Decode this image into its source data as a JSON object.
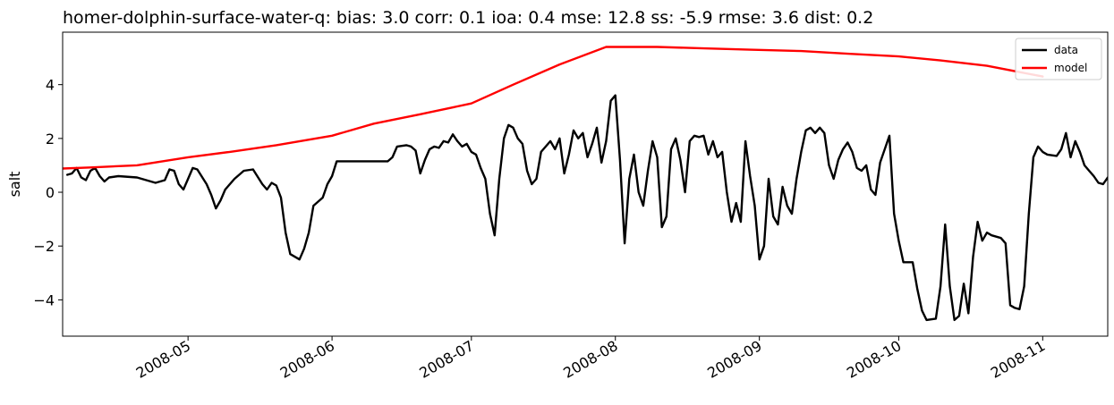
{
  "chart_data": {
    "type": "line",
    "title": "homer-dolphin-surface-water-q: bias: 3.0  corr: 0.1  ioa: 0.4  mse: 12.8  ss: -5.9  rmse: 3.6  dist: 0.2",
    "xlabel": "",
    "ylabel": "salt",
    "xlim": [
      "2008-04-04",
      "2008-11-15"
    ],
    "ylim": [
      -5.35,
      5.95
    ],
    "x_ticks": [
      "2008-05",
      "2008-06",
      "2008-07",
      "2008-08",
      "2008-09",
      "2008-10",
      "2008-11"
    ],
    "y_ticks": [
      -4,
      -2,
      0,
      2,
      4
    ],
    "y_tick_labels": [
      "−4",
      "−2",
      "0",
      "2",
      "4"
    ],
    "grid": false,
    "legend_position": "top-right",
    "series": [
      {
        "name": "data",
        "color": "#000000",
        "points": [
          [
            "2008-04-05",
            0.65
          ],
          [
            "2008-04-06",
            0.7
          ],
          [
            "2008-04-07",
            0.9
          ],
          [
            "2008-04-08",
            0.55
          ],
          [
            "2008-04-09",
            0.45
          ],
          [
            "2008-04-10",
            0.8
          ],
          [
            "2008-04-11",
            0.9
          ],
          [
            "2008-04-12",
            0.6
          ],
          [
            "2008-04-13",
            0.4
          ],
          [
            "2008-04-14",
            0.55
          ],
          [
            "2008-04-16",
            0.6
          ],
          [
            "2008-04-20",
            0.55
          ],
          [
            "2008-04-24",
            0.35
          ],
          [
            "2008-04-26",
            0.45
          ],
          [
            "2008-04-27",
            0.85
          ],
          [
            "2008-04-28",
            0.8
          ],
          [
            "2008-04-29",
            0.3
          ],
          [
            "2008-04-30",
            0.1
          ],
          [
            "2008-05-01",
            0.5
          ],
          [
            "2008-05-02",
            0.9
          ],
          [
            "2008-05-03",
            0.85
          ],
          [
            "2008-05-05",
            0.3
          ],
          [
            "2008-05-06",
            -0.1
          ],
          [
            "2008-05-07",
            -0.6
          ],
          [
            "2008-05-08",
            -0.3
          ],
          [
            "2008-05-09",
            0.1
          ],
          [
            "2008-05-11",
            0.5
          ],
          [
            "2008-05-13",
            0.8
          ],
          [
            "2008-05-15",
            0.85
          ],
          [
            "2008-05-17",
            0.3
          ],
          [
            "2008-05-18",
            0.1
          ],
          [
            "2008-05-19",
            0.35
          ],
          [
            "2008-05-20",
            0.25
          ],
          [
            "2008-05-21",
            -0.2
          ],
          [
            "2008-05-22",
            -1.5
          ],
          [
            "2008-05-23",
            -2.3
          ],
          [
            "2008-05-25",
            -2.5
          ],
          [
            "2008-05-26",
            -2.1
          ],
          [
            "2008-05-27",
            -1.5
          ],
          [
            "2008-05-28",
            -0.5
          ],
          [
            "2008-05-30",
            -0.2
          ],
          [
            "2008-05-31",
            0.3
          ],
          [
            "2008-06-01",
            0.6
          ],
          [
            "2008-06-02",
            1.15
          ],
          [
            "2008-06-13",
            1.15
          ],
          [
            "2008-06-14",
            1.3
          ],
          [
            "2008-06-15",
            1.7
          ],
          [
            "2008-06-17",
            1.75
          ],
          [
            "2008-06-18",
            1.7
          ],
          [
            "2008-06-19",
            1.55
          ],
          [
            "2008-06-20",
            0.7
          ],
          [
            "2008-06-21",
            1.2
          ],
          [
            "2008-06-22",
            1.6
          ],
          [
            "2008-06-23",
            1.7
          ],
          [
            "2008-06-24",
            1.65
          ],
          [
            "2008-06-25",
            1.9
          ],
          [
            "2008-06-26",
            1.85
          ],
          [
            "2008-06-27",
            2.15
          ],
          [
            "2008-06-28",
            1.9
          ],
          [
            "2008-06-29",
            1.7
          ],
          [
            "2008-06-30",
            1.8
          ],
          [
            "2008-07-01",
            1.5
          ],
          [
            "2008-07-02",
            1.4
          ],
          [
            "2008-07-03",
            0.9
          ],
          [
            "2008-07-04",
            0.5
          ],
          [
            "2008-07-05",
            -0.8
          ],
          [
            "2008-07-06",
            -1.6
          ],
          [
            "2008-07-07",
            0.5
          ],
          [
            "2008-07-08",
            2.0
          ],
          [
            "2008-07-09",
            2.5
          ],
          [
            "2008-07-10",
            2.4
          ],
          [
            "2008-07-11",
            2.0
          ],
          [
            "2008-07-12",
            1.8
          ],
          [
            "2008-07-13",
            0.8
          ],
          [
            "2008-07-14",
            0.3
          ],
          [
            "2008-07-15",
            0.5
          ],
          [
            "2008-07-16",
            1.5
          ],
          [
            "2008-07-17",
            1.7
          ],
          [
            "2008-07-18",
            1.9
          ],
          [
            "2008-07-19",
            1.6
          ],
          [
            "2008-07-20",
            2.0
          ],
          [
            "2008-07-21",
            0.7
          ],
          [
            "2008-07-22",
            1.4
          ],
          [
            "2008-07-23",
            2.3
          ],
          [
            "2008-07-24",
            2.0
          ],
          [
            "2008-07-25",
            2.2
          ],
          [
            "2008-07-26",
            1.3
          ],
          [
            "2008-07-27",
            1.8
          ],
          [
            "2008-07-28",
            2.4
          ],
          [
            "2008-07-29",
            1.1
          ],
          [
            "2008-07-30",
            1.9
          ],
          [
            "2008-07-31",
            3.4
          ],
          [
            "2008-08-01",
            3.6
          ],
          [
            "2008-08-02",
            1.2
          ],
          [
            "2008-08-03",
            -1.9
          ],
          [
            "2008-08-04",
            0.5
          ],
          [
            "2008-08-05",
            1.4
          ],
          [
            "2008-08-06",
            0.0
          ],
          [
            "2008-08-07",
            -0.5
          ],
          [
            "2008-08-08",
            0.8
          ],
          [
            "2008-08-09",
            1.9
          ],
          [
            "2008-08-10",
            1.3
          ],
          [
            "2008-08-11",
            -1.3
          ],
          [
            "2008-08-12",
            -0.9
          ],
          [
            "2008-08-13",
            1.6
          ],
          [
            "2008-08-14",
            2.0
          ],
          [
            "2008-08-15",
            1.2
          ],
          [
            "2008-08-16",
            0.0
          ],
          [
            "2008-08-17",
            1.9
          ],
          [
            "2008-08-18",
            2.1
          ],
          [
            "2008-08-19",
            2.05
          ],
          [
            "2008-08-20",
            2.1
          ],
          [
            "2008-08-21",
            1.4
          ],
          [
            "2008-08-22",
            1.9
          ],
          [
            "2008-08-23",
            1.3
          ],
          [
            "2008-08-24",
            1.5
          ],
          [
            "2008-08-25",
            0.0
          ],
          [
            "2008-08-26",
            -1.1
          ],
          [
            "2008-08-27",
            -0.4
          ],
          [
            "2008-08-28",
            -1.1
          ],
          [
            "2008-08-29",
            1.9
          ],
          [
            "2008-08-30",
            0.6
          ],
          [
            "2008-08-31",
            -0.5
          ],
          [
            "2008-09-01",
            -2.5
          ],
          [
            "2008-09-02",
            -2.0
          ],
          [
            "2008-09-03",
            0.5
          ],
          [
            "2008-09-04",
            -0.9
          ],
          [
            "2008-09-05",
            -1.2
          ],
          [
            "2008-09-06",
            0.2
          ],
          [
            "2008-09-07",
            -0.5
          ],
          [
            "2008-09-08",
            -0.8
          ],
          [
            "2008-09-09",
            0.5
          ],
          [
            "2008-09-10",
            1.5
          ],
          [
            "2008-09-11",
            2.3
          ],
          [
            "2008-09-12",
            2.4
          ],
          [
            "2008-09-13",
            2.2
          ],
          [
            "2008-09-14",
            2.4
          ],
          [
            "2008-09-15",
            2.2
          ],
          [
            "2008-09-16",
            1.0
          ],
          [
            "2008-09-17",
            0.5
          ],
          [
            "2008-09-18",
            1.2
          ],
          [
            "2008-09-19",
            1.6
          ],
          [
            "2008-09-20",
            1.85
          ],
          [
            "2008-09-21",
            1.5
          ],
          [
            "2008-09-22",
            0.9
          ],
          [
            "2008-09-23",
            0.8
          ],
          [
            "2008-09-24",
            1.0
          ],
          [
            "2008-09-25",
            0.1
          ],
          [
            "2008-09-26",
            -0.1
          ],
          [
            "2008-09-27",
            1.1
          ],
          [
            "2008-09-28",
            1.6
          ],
          [
            "2008-09-29",
            2.1
          ],
          [
            "2008-09-30",
            -0.8
          ],
          [
            "2008-10-01",
            -1.8
          ],
          [
            "2008-10-02",
            -2.6
          ],
          [
            "2008-10-04",
            -2.6
          ],
          [
            "2008-10-05",
            -3.6
          ],
          [
            "2008-10-06",
            -4.4
          ],
          [
            "2008-10-07",
            -4.75
          ],
          [
            "2008-10-09",
            -4.7
          ],
          [
            "2008-10-10",
            -3.5
          ],
          [
            "2008-10-11",
            -1.2
          ],
          [
            "2008-10-12",
            -3.5
          ],
          [
            "2008-10-13",
            -4.75
          ],
          [
            "2008-10-14",
            -4.6
          ],
          [
            "2008-10-15",
            -3.4
          ],
          [
            "2008-10-16",
            -4.5
          ],
          [
            "2008-10-17",
            -2.4
          ],
          [
            "2008-10-18",
            -1.1
          ],
          [
            "2008-10-19",
            -1.8
          ],
          [
            "2008-10-20",
            -1.5
          ],
          [
            "2008-10-21",
            -1.6
          ],
          [
            "2008-10-23",
            -1.7
          ],
          [
            "2008-10-24",
            -1.9
          ],
          [
            "2008-10-25",
            -4.2
          ],
          [
            "2008-10-26",
            -4.3
          ],
          [
            "2008-10-27",
            -4.35
          ],
          [
            "2008-10-28",
            -3.5
          ],
          [
            "2008-10-29",
            -0.8
          ],
          [
            "2008-10-30",
            1.3
          ],
          [
            "2008-10-31",
            1.7
          ],
          [
            "2008-11-01",
            1.5
          ],
          [
            "2008-11-02",
            1.4
          ],
          [
            "2008-11-04",
            1.35
          ],
          [
            "2008-11-05",
            1.6
          ],
          [
            "2008-11-06",
            2.2
          ],
          [
            "2008-11-07",
            1.3
          ],
          [
            "2008-11-08",
            1.9
          ],
          [
            "2008-11-09",
            1.5
          ],
          [
            "2008-11-10",
            1.0
          ],
          [
            "2008-11-11",
            0.8
          ],
          [
            "2008-11-12",
            0.6
          ],
          [
            "2008-11-13",
            0.35
          ],
          [
            "2008-11-14",
            0.3
          ],
          [
            "2008-11-15",
            0.55
          ]
        ]
      },
      {
        "name": "model",
        "color": "#ff0000",
        "points": [
          [
            "2008-04-04",
            0.88
          ],
          [
            "2008-04-10",
            0.92
          ],
          [
            "2008-04-20",
            1.0
          ],
          [
            "2008-05-01",
            1.3
          ],
          [
            "2008-05-10",
            1.5
          ],
          [
            "2008-05-20",
            1.75
          ],
          [
            "2008-06-01",
            2.1
          ],
          [
            "2008-06-10",
            2.55
          ],
          [
            "2008-06-20",
            2.9
          ],
          [
            "2008-07-01",
            3.3
          ],
          [
            "2008-07-10",
            4.0
          ],
          [
            "2008-07-20",
            4.75
          ],
          [
            "2008-07-30",
            5.4
          ],
          [
            "2008-08-10",
            5.4
          ],
          [
            "2008-08-20",
            5.35
          ],
          [
            "2008-08-30",
            5.3
          ],
          [
            "2008-09-10",
            5.25
          ],
          [
            "2008-09-20",
            5.15
          ],
          [
            "2008-10-01",
            5.05
          ],
          [
            "2008-10-10",
            4.9
          ],
          [
            "2008-10-20",
            4.7
          ],
          [
            "2008-11-01",
            4.3
          ]
        ]
      }
    ]
  }
}
